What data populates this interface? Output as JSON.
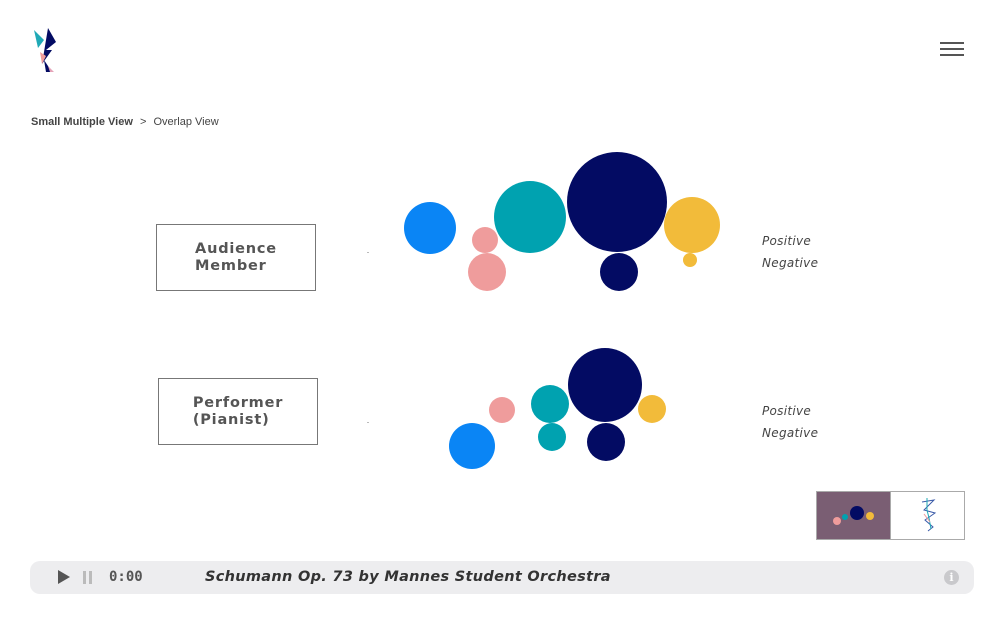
{
  "nav": {
    "logo_icon": "lightning-logo-icon",
    "menu_icon": "hamburger-menu-icon"
  },
  "breadcrumb": {
    "current": "Small Multiple View",
    "separator": ">",
    "other": "Overlap View"
  },
  "rows": [
    {
      "label_line1": "Audience",
      "label_line2": "Member",
      "legend_positive": "Positive",
      "legend_negative": "Negative"
    },
    {
      "label_line1": "Performer",
      "label_line2": "(Pianist)",
      "legend_positive": "Positive",
      "legend_negative": "Negative"
    }
  ],
  "palette": {
    "blue": "#0a85f5",
    "pink": "#ef9c9c",
    "teal": "#00a2b0",
    "navy": "#030b63",
    "yellow": "#f2bb3a",
    "toggle_bg": "#7a5e73"
  },
  "view_toggle": {
    "bubbles_icon": "bubbles-view-icon",
    "network_icon": "network-view-icon"
  },
  "player": {
    "play_icon": "play-icon",
    "pause_icon": "pause-icon",
    "time": "0:00",
    "title": "Schumann Op. 73 by Mannes Student Orchestra",
    "info_icon": "info-icon",
    "info_glyph": "i"
  }
}
